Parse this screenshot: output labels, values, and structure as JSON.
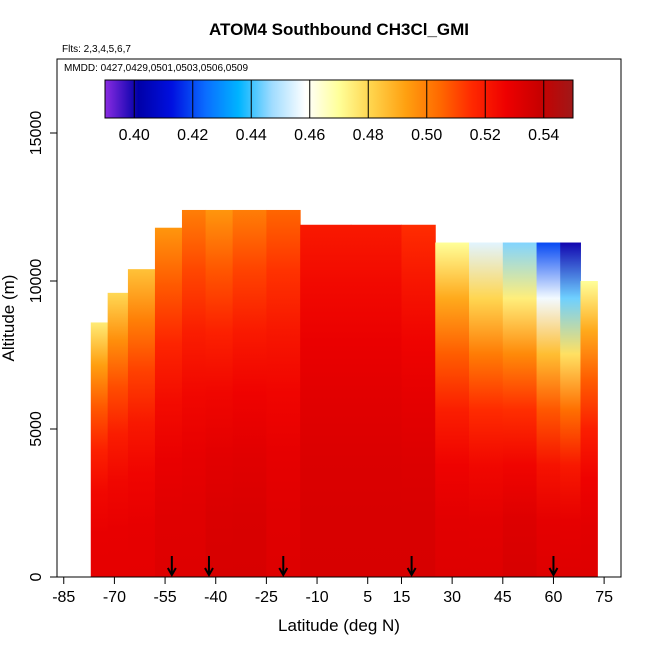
{
  "chart_data": {
    "type": "heatmap",
    "title": "ATOM4 Southbound CH3Cl_GMI",
    "flights_label": "Flts: 2,3,4,5,6,7",
    "dates_label": "MMDD: 0427,0429,0501,0503,0506,0509",
    "xlabel": "Latitude (deg N)",
    "ylabel": "Altitude (m)",
    "xlim": [
      -87,
      80
    ],
    "ylim": [
      0,
      17500
    ],
    "x_ticks": [
      -85,
      -70,
      -55,
      -40,
      -25,
      -10,
      5,
      15,
      30,
      45,
      60,
      75
    ],
    "x_tick_labels": [
      "-85",
      "-70",
      "-55",
      "-40",
      "-25",
      "-10",
      "5",
      "15",
      "30",
      "45",
      "60",
      "75"
    ],
    "y_ticks": [
      0,
      5000,
      10000,
      15000
    ],
    "y_tick_labels": [
      "0",
      "5000",
      "10000",
      "15000"
    ],
    "colorbar": {
      "min": 0.39,
      "max": 0.55,
      "ticks": [
        0.4,
        0.42,
        0.44,
        0.46,
        0.48,
        0.5,
        0.52,
        0.54
      ],
      "tick_labels": [
        "0.40",
        "0.42",
        "0.44",
        "0.46",
        "0.48",
        "0.50",
        "0.52",
        "0.54"
      ],
      "colors": [
        "#8a2be2",
        "#0000a8",
        "#0010e0",
        "#0a6cff",
        "#00b4ff",
        "#a0dcff",
        "#ffffff",
        "#ffff99",
        "#ffd24a",
        "#ffa010",
        "#ff6a00",
        "#ff2800",
        "#ee0000",
        "#c80000",
        "#a01818"
      ]
    },
    "field_columns": [
      {
        "lat_range": [
          -77,
          -72
        ],
        "alt_top": 8600,
        "top_value": 0.475,
        "bottom_value": 0.53
      },
      {
        "lat_range": [
          -72,
          -66
        ],
        "alt_top": 9600,
        "top_value": 0.48,
        "bottom_value": 0.53
      },
      {
        "lat_range": [
          -66,
          -58
        ],
        "alt_top": 10400,
        "top_value": 0.485,
        "bottom_value": 0.53
      },
      {
        "lat_range": [
          -58,
          -50
        ],
        "alt_top": 11800,
        "top_value": 0.495,
        "bottom_value": 0.532
      },
      {
        "lat_range": [
          -50,
          -43
        ],
        "alt_top": 12400,
        "top_value": 0.5,
        "bottom_value": 0.532
      },
      {
        "lat_range": [
          -43,
          -35
        ],
        "alt_top": 12400,
        "top_value": 0.495,
        "bottom_value": 0.534
      },
      {
        "lat_range": [
          -35,
          -25
        ],
        "alt_top": 12400,
        "top_value": 0.5,
        "bottom_value": 0.534
      },
      {
        "lat_range": [
          -25,
          -15
        ],
        "alt_top": 12400,
        "top_value": 0.505,
        "bottom_value": 0.532
      },
      {
        "lat_range": [
          -15,
          0
        ],
        "alt_top": 11900,
        "top_value": 0.52,
        "bottom_value": 0.534
      },
      {
        "lat_range": [
          0,
          15
        ],
        "alt_top": 11900,
        "top_value": 0.52,
        "bottom_value": 0.534
      },
      {
        "lat_range": [
          15,
          25
        ],
        "alt_top": 11900,
        "top_value": 0.515,
        "bottom_value": 0.534
      },
      {
        "lat_range": [
          25,
          35
        ],
        "alt_top": 11300,
        "top_value": 0.47,
        "bottom_value": 0.532
      },
      {
        "lat_range": [
          35,
          45
        ],
        "alt_top": 11300,
        "top_value": 0.455,
        "bottom_value": 0.532
      },
      {
        "lat_range": [
          45,
          55
        ],
        "alt_top": 11300,
        "top_value": 0.445,
        "bottom_value": 0.534
      },
      {
        "lat_range": [
          55,
          62
        ],
        "alt_top": 11300,
        "top_value": 0.42,
        "bottom_value": 0.532
      },
      {
        "lat_range": [
          62,
          68
        ],
        "alt_top": 11300,
        "top_value": 0.4,
        "bottom_value": 0.532
      },
      {
        "lat_range": [
          68,
          73
        ],
        "alt_top": 10000,
        "top_value": 0.47,
        "bottom_value": 0.532
      }
    ],
    "flight_markers_lat": [
      -53,
      -42,
      -20,
      18,
      60
    ]
  }
}
